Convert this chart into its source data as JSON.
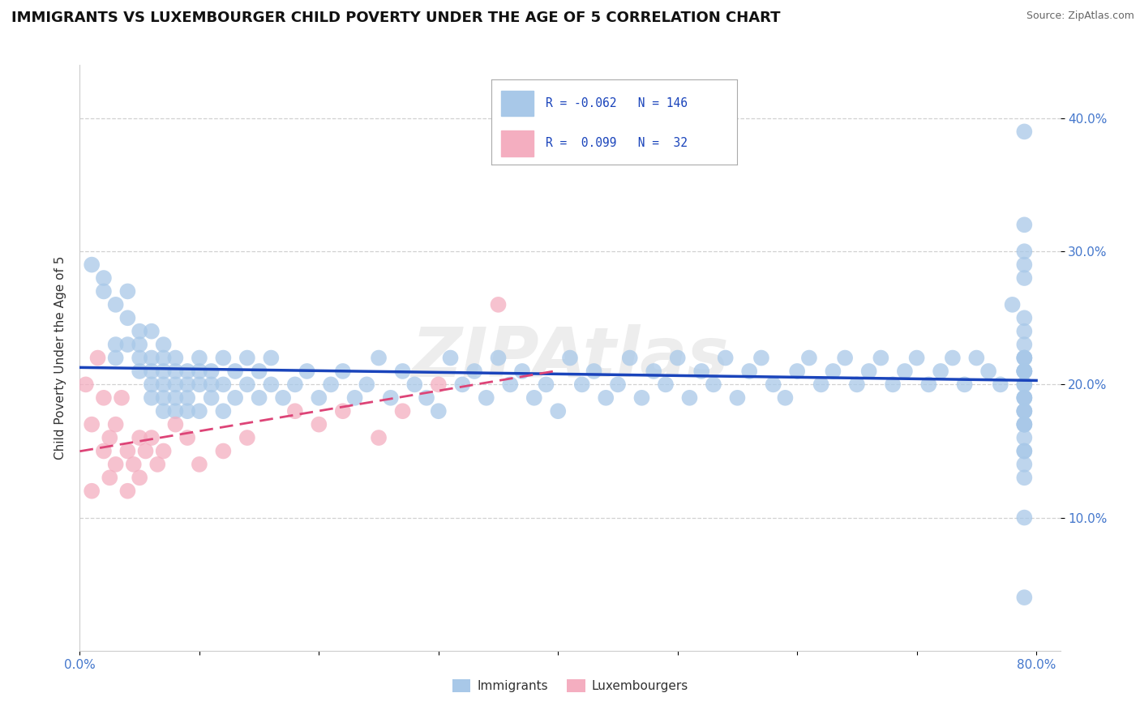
{
  "title": "IMMIGRANTS VS LUXEMBOURGER CHILD POVERTY UNDER THE AGE OF 5 CORRELATION CHART",
  "source": "Source: ZipAtlas.com",
  "ylabel": "Child Poverty Under the Age of 5",
  "xlim": [
    0.0,
    0.82
  ],
  "ylim": [
    0.0,
    0.44
  ],
  "xticks": [
    0.0,
    0.1,
    0.2,
    0.3,
    0.4,
    0.5,
    0.6,
    0.7,
    0.8
  ],
  "xticklabels": [
    "0.0%",
    "",
    "",
    "",
    "",
    "",
    "",
    "",
    "80.0%"
  ],
  "yticks": [
    0.1,
    0.2,
    0.3,
    0.4
  ],
  "yticklabels": [
    "10.0%",
    "20.0%",
    "30.0%",
    "40.0%"
  ],
  "immigrants_R": -0.062,
  "immigrants_N": 146,
  "luxembourgers_R": 0.099,
  "luxembourgers_N": 32,
  "immigrant_color": "#a8c8e8",
  "luxembourger_color": "#f4aec0",
  "trend_blue": "#1a44bb",
  "trend_pink": "#dd4477",
  "tick_color": "#4477cc",
  "legend_text_color": "#1a44bb",
  "watermark": "ZIPAtlas",
  "background_color": "#ffffff",
  "grid_color": "#cccccc",
  "title_fontsize": 13,
  "axis_label_fontsize": 11,
  "tick_fontsize": 11,
  "source_fontsize": 9,
  "legend_fontsize": 11,
  "imm_x": [
    0.01,
    0.02,
    0.02,
    0.03,
    0.03,
    0.03,
    0.04,
    0.04,
    0.04,
    0.05,
    0.05,
    0.05,
    0.05,
    0.06,
    0.06,
    0.06,
    0.06,
    0.06,
    0.07,
    0.07,
    0.07,
    0.07,
    0.07,
    0.07,
    0.08,
    0.08,
    0.08,
    0.08,
    0.08,
    0.09,
    0.09,
    0.09,
    0.09,
    0.1,
    0.1,
    0.1,
    0.1,
    0.11,
    0.11,
    0.11,
    0.12,
    0.12,
    0.12,
    0.13,
    0.13,
    0.14,
    0.14,
    0.15,
    0.15,
    0.16,
    0.16,
    0.17,
    0.18,
    0.19,
    0.2,
    0.21,
    0.22,
    0.23,
    0.24,
    0.25,
    0.26,
    0.27,
    0.28,
    0.29,
    0.3,
    0.31,
    0.32,
    0.33,
    0.34,
    0.35,
    0.36,
    0.37,
    0.38,
    0.39,
    0.4,
    0.41,
    0.42,
    0.43,
    0.44,
    0.45,
    0.46,
    0.47,
    0.48,
    0.49,
    0.5,
    0.51,
    0.52,
    0.53,
    0.54,
    0.55,
    0.56,
    0.57,
    0.58,
    0.59,
    0.6,
    0.61,
    0.62,
    0.63,
    0.64,
    0.65,
    0.66,
    0.67,
    0.68,
    0.69,
    0.7,
    0.71,
    0.72,
    0.73,
    0.74,
    0.75,
    0.76,
    0.77,
    0.78,
    0.79,
    0.79,
    0.79,
    0.79,
    0.79,
    0.79,
    0.79,
    0.79,
    0.79,
    0.79,
    0.79,
    0.79,
    0.79,
    0.79,
    0.79,
    0.79,
    0.79,
    0.79,
    0.79,
    0.79,
    0.79,
    0.79,
    0.79,
    0.79,
    0.79,
    0.79,
    0.79,
    0.79,
    0.79,
    0.79,
    0.79,
    0.79,
    0.79
  ],
  "imm_y": [
    0.29,
    0.28,
    0.27,
    0.26,
    0.23,
    0.22,
    0.27,
    0.25,
    0.23,
    0.24,
    0.23,
    0.22,
    0.21,
    0.24,
    0.22,
    0.21,
    0.2,
    0.19,
    0.23,
    0.22,
    0.21,
    0.2,
    0.19,
    0.18,
    0.22,
    0.21,
    0.2,
    0.19,
    0.18,
    0.21,
    0.2,
    0.19,
    0.18,
    0.22,
    0.21,
    0.2,
    0.18,
    0.21,
    0.2,
    0.19,
    0.22,
    0.2,
    0.18,
    0.21,
    0.19,
    0.22,
    0.2,
    0.21,
    0.19,
    0.22,
    0.2,
    0.19,
    0.2,
    0.21,
    0.19,
    0.2,
    0.21,
    0.19,
    0.2,
    0.22,
    0.19,
    0.21,
    0.2,
    0.19,
    0.18,
    0.22,
    0.2,
    0.21,
    0.19,
    0.22,
    0.2,
    0.21,
    0.19,
    0.2,
    0.18,
    0.22,
    0.2,
    0.21,
    0.19,
    0.2,
    0.22,
    0.19,
    0.21,
    0.2,
    0.22,
    0.19,
    0.21,
    0.2,
    0.22,
    0.19,
    0.21,
    0.22,
    0.2,
    0.19,
    0.21,
    0.22,
    0.2,
    0.21,
    0.22,
    0.2,
    0.21,
    0.22,
    0.2,
    0.21,
    0.22,
    0.2,
    0.21,
    0.22,
    0.2,
    0.22,
    0.21,
    0.2,
    0.26,
    0.32,
    0.2,
    0.18,
    0.15,
    0.17,
    0.22,
    0.21,
    0.25,
    0.19,
    0.24,
    0.18,
    0.17,
    0.22,
    0.21,
    0.16,
    0.19,
    0.28,
    0.23,
    0.2,
    0.17,
    0.15,
    0.1,
    0.21,
    0.18,
    0.29,
    0.22,
    0.14,
    0.19,
    0.04,
    0.39,
    0.13,
    0.21,
    0.3
  ],
  "lux_x": [
    0.005,
    0.01,
    0.01,
    0.015,
    0.02,
    0.02,
    0.025,
    0.025,
    0.03,
    0.03,
    0.035,
    0.04,
    0.04,
    0.045,
    0.05,
    0.05,
    0.055,
    0.06,
    0.065,
    0.07,
    0.08,
    0.09,
    0.1,
    0.12,
    0.14,
    0.18,
    0.2,
    0.22,
    0.25,
    0.27,
    0.3,
    0.35
  ],
  "lux_y": [
    0.2,
    0.17,
    0.12,
    0.22,
    0.19,
    0.15,
    0.16,
    0.13,
    0.17,
    0.14,
    0.19,
    0.15,
    0.12,
    0.14,
    0.16,
    0.13,
    0.15,
    0.16,
    0.14,
    0.15,
    0.17,
    0.16,
    0.14,
    0.15,
    0.16,
    0.18,
    0.17,
    0.18,
    0.16,
    0.18,
    0.2,
    0.26
  ]
}
